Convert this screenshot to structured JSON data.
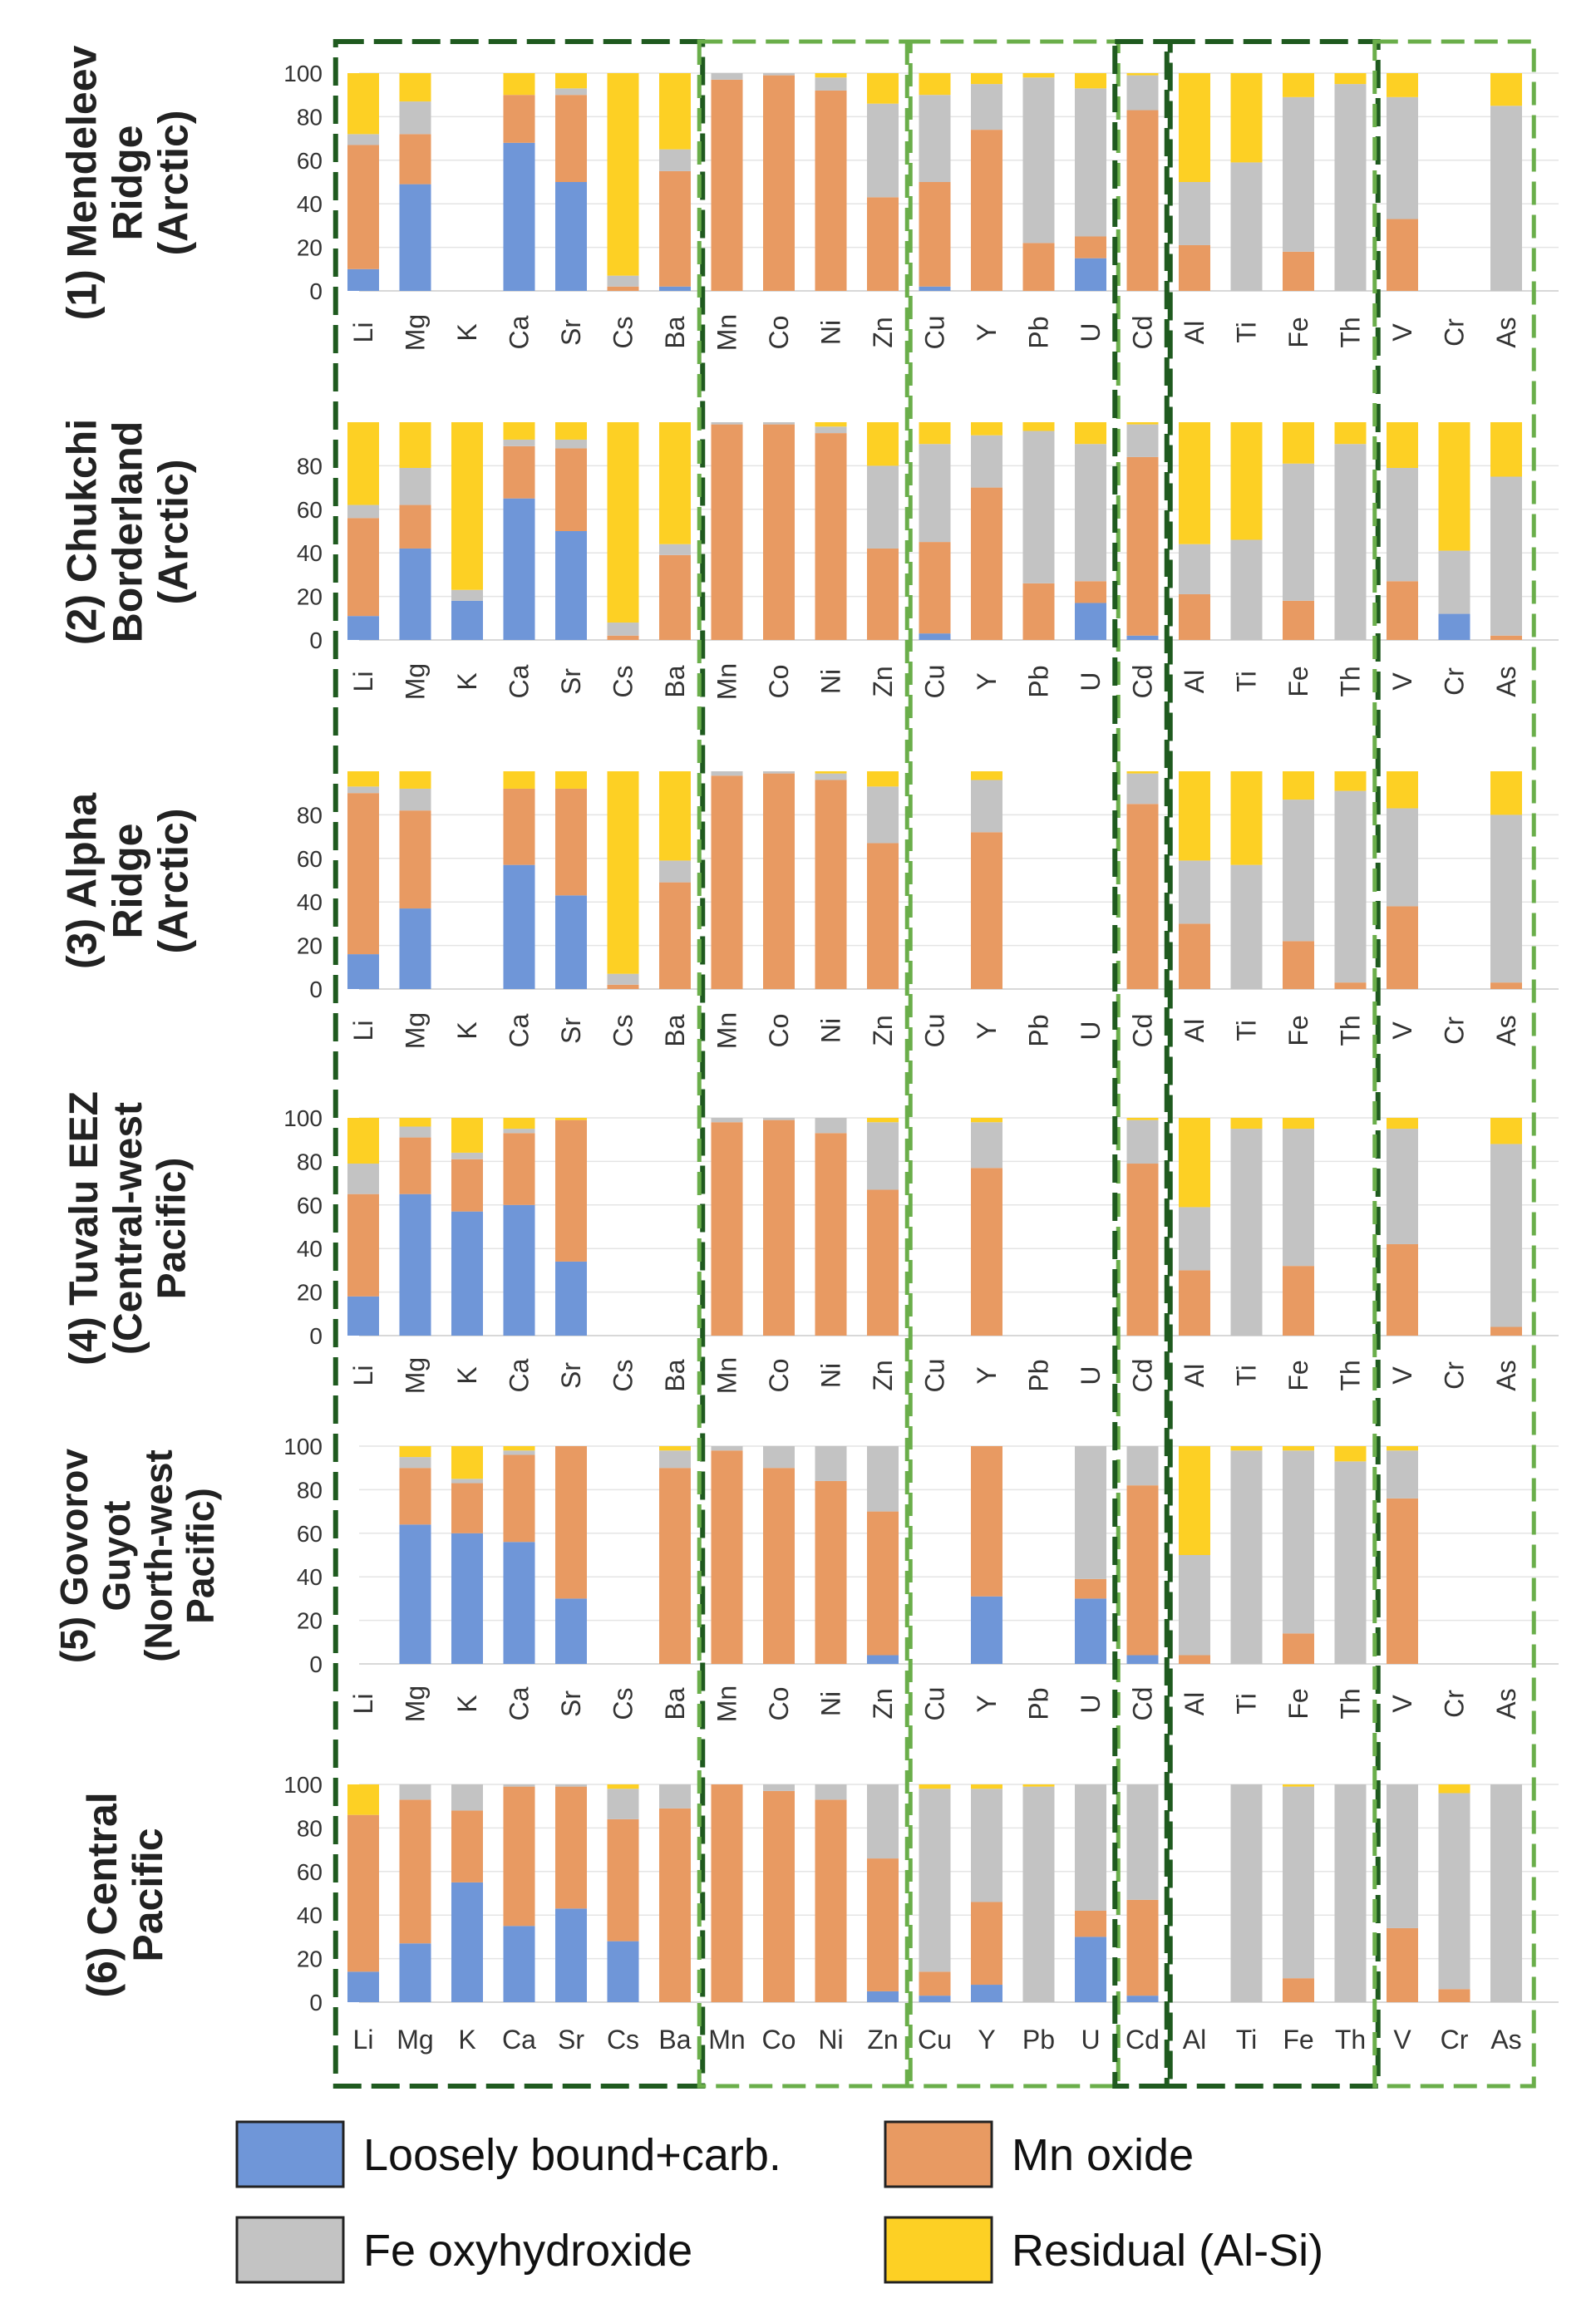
{
  "chart_data": {
    "type": "bar",
    "stacked": true,
    "ylim": [
      0,
      100
    ],
    "categories": [
      "Li",
      "Mg",
      "K",
      "Ca",
      "Sr",
      "Cs",
      "Ba",
      "Mn",
      "Co",
      "Ni",
      "Zn",
      "Cu",
      "Y",
      "Pb",
      "U",
      "Cd",
      "Al",
      "Ti",
      "Fe",
      "Th",
      "V",
      "Cr",
      "As"
    ],
    "component_order": [
      "loose",
      "mnox",
      "feox",
      "resid"
    ],
    "legend": [
      {
        "key": "loose",
        "label": "Loosely bound+carb.",
        "color": "#6f96d8"
      },
      {
        "key": "mnox",
        "label": "Mn oxide",
        "color": "#e89a62"
      },
      {
        "key": "feox",
        "label": "Fe oxyhydroxide",
        "color": "#c3c3c3"
      },
      {
        "key": "resid",
        "label": "Residual (Al-Si)",
        "color": "#fdd024"
      }
    ],
    "group_boxes": [
      {
        "from": 0,
        "to": 6,
        "style": "dark"
      },
      {
        "from": 7,
        "to": 10,
        "style": "light"
      },
      {
        "from": 11,
        "to": 14,
        "style": "light"
      },
      {
        "from": 15,
        "to": 15,
        "style": "dark"
      },
      {
        "from": 16,
        "to": 19,
        "style": "dark"
      },
      {
        "from": 20,
        "to": 22,
        "style": "light"
      }
    ],
    "panels": [
      {
        "label_lines": [
          "(1) Mendeleev",
          "Ridge",
          "(Arctic)"
        ],
        "yticks": [
          "0",
          "20",
          "40",
          "60",
          "80",
          "100"
        ],
        "bars": {
          "Li": [
            10,
            57,
            5,
            28
          ],
          "Mg": [
            49,
            23,
            15,
            13
          ],
          "Ca": [
            68,
            22,
            0,
            10
          ],
          "Sr": [
            50,
            40,
            3,
            7
          ],
          "Cs": [
            0,
            2,
            5,
            93
          ],
          "Ba": [
            2,
            53,
            10,
            35
          ],
          "Mn": [
            0,
            97,
            3,
            0
          ],
          "Co": [
            0,
            99,
            1,
            0
          ],
          "Ni": [
            0,
            92,
            6,
            2
          ],
          "Zn": [
            0,
            43,
            43,
            14
          ],
          "Cu": [
            2,
            48,
            40,
            10
          ],
          "Y": [
            0,
            74,
            21,
            5
          ],
          "Pb": [
            0,
            22,
            76,
            2
          ],
          "U": [
            15,
            10,
            68,
            7
          ],
          "Cd": [
            0,
            83,
            16,
            1
          ],
          "Al": [
            0,
            21,
            29,
            50
          ],
          "Ti": [
            0,
            0,
            59,
            41
          ],
          "Fe": [
            0,
            18,
            71,
            11
          ],
          "Th": [
            0,
            0,
            95,
            5
          ],
          "V": [
            0,
            33,
            56,
            11
          ],
          "As": [
            0,
            0,
            85,
            15
          ]
        }
      },
      {
        "label_lines": [
          "(2) Chukchi",
          "Borderland",
          "(Arctic)"
        ],
        "yticks": [
          "0",
          "20",
          "40",
          "60",
          "80"
        ],
        "bars": {
          "Li": [
            11,
            45,
            6,
            38
          ],
          "Mg": [
            42,
            20,
            17,
            21
          ],
          "K": [
            18,
            0,
            5,
            77
          ],
          "Ca": [
            65,
            24,
            3,
            8
          ],
          "Sr": [
            50,
            38,
            4,
            8
          ],
          "Cs": [
            0,
            2,
            6,
            92
          ],
          "Ba": [
            0,
            39,
            5,
            56
          ],
          "Mn": [
            0,
            99,
            1,
            0
          ],
          "Co": [
            0,
            99,
            1,
            0
          ],
          "Ni": [
            0,
            95,
            3,
            2
          ],
          "Zn": [
            0,
            42,
            38,
            20
          ],
          "Cu": [
            3,
            42,
            45,
            10
          ],
          "Y": [
            0,
            70,
            24,
            6
          ],
          "Pb": [
            0,
            26,
            70,
            4
          ],
          "U": [
            17,
            10,
            63,
            10
          ],
          "Cd": [
            2,
            82,
            15,
            1
          ],
          "Al": [
            0,
            21,
            23,
            56
          ],
          "Ti": [
            0,
            0,
            46,
            54
          ],
          "Fe": [
            0,
            18,
            63,
            19
          ],
          "Th": [
            0,
            0,
            90,
            10
          ],
          "V": [
            0,
            27,
            52,
            21
          ],
          "Cr": [
            12,
            0,
            29,
            59
          ],
          "As": [
            0,
            2,
            73,
            25
          ]
        }
      },
      {
        "label_lines": [
          "(3) Alpha",
          "Ridge",
          "(Arctic)"
        ],
        "yticks": [
          "0",
          "20",
          "40",
          "60",
          "80"
        ],
        "bars": {
          "Li": [
            16,
            74,
            3,
            7
          ],
          "Mg": [
            37,
            45,
            10,
            8
          ],
          "Ca": [
            57,
            35,
            0,
            8
          ],
          "Sr": [
            43,
            49,
            0,
            8
          ],
          "Cs": [
            0,
            2,
            5,
            93
          ],
          "Ba": [
            0,
            49,
            10,
            41
          ],
          "Mn": [
            0,
            98,
            2,
            0
          ],
          "Co": [
            0,
            99,
            1,
            0
          ],
          "Ni": [
            0,
            96,
            3,
            1
          ],
          "Zn": [
            0,
            67,
            26,
            7
          ],
          "Y": [
            0,
            72,
            24,
            4
          ],
          "Cd": [
            0,
            85,
            14,
            1
          ],
          "Al": [
            0,
            30,
            29,
            41
          ],
          "Ti": [
            0,
            0,
            57,
            43
          ],
          "Fe": [
            0,
            22,
            65,
            13
          ],
          "Th": [
            0,
            3,
            88,
            9
          ],
          "V": [
            0,
            38,
            45,
            17
          ],
          "As": [
            0,
            3,
            77,
            20
          ]
        }
      },
      {
        "label_lines": [
          "(4) Tuvalu EEZ",
          "(Central-west",
          "Pacific)"
        ],
        "yticks": [
          "0",
          "20",
          "40",
          "60",
          "80",
          "100"
        ],
        "bars": {
          "Li": [
            18,
            47,
            14,
            21
          ],
          "Mg": [
            65,
            26,
            5,
            4
          ],
          "K": [
            57,
            24,
            3,
            16
          ],
          "Ca": [
            60,
            33,
            2,
            5
          ],
          "Sr": [
            34,
            65,
            0,
            1
          ],
          "Mn": [
            0,
            98,
            2,
            0
          ],
          "Co": [
            0,
            99,
            1,
            0
          ],
          "Ni": [
            0,
            93,
            7,
            0
          ],
          "Zn": [
            0,
            67,
            31,
            2
          ],
          "Y": [
            0,
            77,
            21,
            2
          ],
          "Cd": [
            0,
            79,
            20,
            1
          ],
          "Al": [
            0,
            30,
            29,
            41
          ],
          "Ti": [
            0,
            0,
            95,
            5
          ],
          "Fe": [
            0,
            32,
            63,
            5
          ],
          "V": [
            0,
            42,
            53,
            5
          ],
          "As": [
            0,
            4,
            84,
            12
          ]
        }
      },
      {
        "label_lines": [
          "(5) Govorov",
          "Guyot",
          "(North-west",
          "Pacific)"
        ],
        "yticks": [
          "0",
          "20",
          "40",
          "60",
          "80",
          "100"
        ],
        "bars": {
          "Mg": [
            64,
            26,
            5,
            5
          ],
          "K": [
            60,
            23,
            2,
            15
          ],
          "Ca": [
            56,
            40,
            2,
            2
          ],
          "Sr": [
            30,
            70,
            0,
            0
          ],
          "Ba": [
            0,
            90,
            8,
            2
          ],
          "Mn": [
            0,
            98,
            2,
            0
          ],
          "Co": [
            0,
            90,
            10,
            0
          ],
          "Ni": [
            0,
            84,
            16,
            0
          ],
          "Zn": [
            4,
            66,
            30,
            0
          ],
          "Y": [
            31,
            69,
            0,
            0
          ],
          "U": [
            30,
            9,
            61,
            0
          ],
          "Cd": [
            4,
            78,
            18,
            0
          ],
          "Al": [
            0,
            4,
            46,
            50
          ],
          "Ti": [
            0,
            0,
            98,
            2
          ],
          "Fe": [
            0,
            14,
            84,
            2
          ],
          "Th": [
            0,
            0,
            93,
            7
          ],
          "V": [
            0,
            76,
            22,
            2
          ]
        }
      },
      {
        "label_lines": [
          "(6) Central",
          "Pacific"
        ],
        "yticks": [
          "0",
          "20",
          "40",
          "60",
          "80",
          "100"
        ],
        "bars": {
          "Li": [
            14,
            72,
            0,
            14
          ],
          "Mg": [
            27,
            66,
            7,
            0
          ],
          "K": [
            55,
            33,
            12,
            0
          ],
          "Ca": [
            35,
            64,
            1,
            0
          ],
          "Sr": [
            43,
            56,
            1,
            0
          ],
          "Cs": [
            28,
            56,
            14,
            2
          ],
          "Ba": [
            0,
            89,
            11,
            0
          ],
          "Mn": [
            0,
            100,
            0,
            0
          ],
          "Co": [
            0,
            97,
            3,
            0
          ],
          "Ni": [
            0,
            93,
            7,
            0
          ],
          "Zn": [
            5,
            61,
            34,
            0
          ],
          "Cu": [
            3,
            11,
            84,
            2
          ],
          "Y": [
            8,
            38,
            52,
            2
          ],
          "Pb": [
            0,
            0,
            99,
            1
          ],
          "U": [
            30,
            12,
            58,
            0
          ],
          "Cd": [
            3,
            44,
            53,
            0
          ],
          "Ti": [
            0,
            0,
            100,
            0
          ],
          "Fe": [
            0,
            11,
            88,
            1
          ],
          "Th": [
            0,
            0,
            100,
            0
          ],
          "V": [
            0,
            34,
            66,
            0
          ],
          "Cr": [
            0,
            6,
            90,
            4
          ],
          "As": [
            0,
            0,
            100,
            0
          ]
        }
      }
    ]
  }
}
